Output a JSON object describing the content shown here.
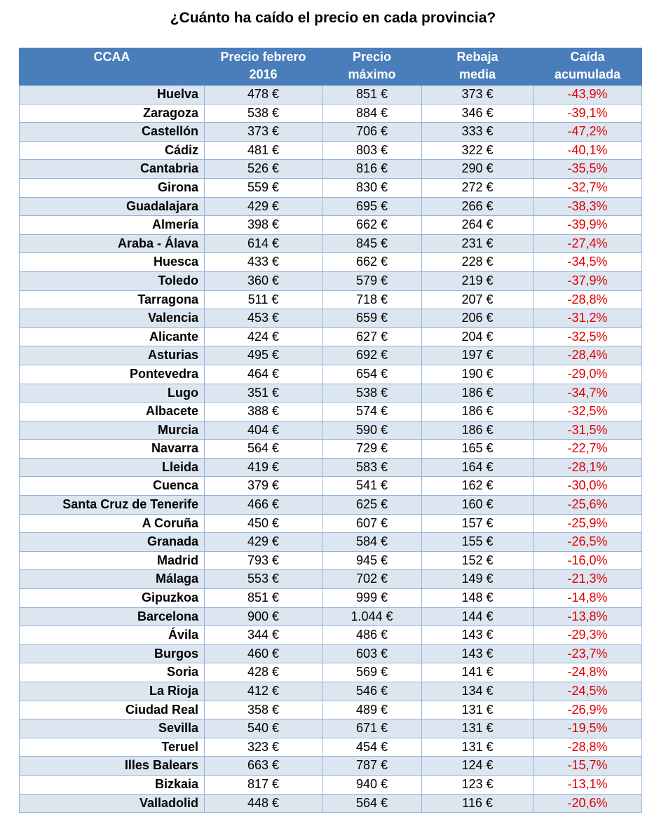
{
  "title": "¿Cuánto ha caído el precio en cada provincia?",
  "columns": [
    "CCAA",
    "Precio febrero 2016",
    "Precio máximo",
    "Rebaja media",
    "Caída acumulada"
  ],
  "rows": [
    [
      "Huelva",
      "478 €",
      "851 €",
      "373 €",
      "-43,9%"
    ],
    [
      "Zaragoza",
      "538 €",
      "884 €",
      "346 €",
      "-39,1%"
    ],
    [
      "Castellón",
      "373 €",
      "706 €",
      "333 €",
      "-47,2%"
    ],
    [
      "Cádiz",
      "481 €",
      "803 €",
      "322 €",
      "-40,1%"
    ],
    [
      "Cantabria",
      "526 €",
      "816 €",
      "290 €",
      "-35,5%"
    ],
    [
      "Girona",
      "559 €",
      "830 €",
      "272 €",
      "-32,7%"
    ],
    [
      "Guadalajara",
      "429 €",
      "695 €",
      "266 €",
      "-38,3%"
    ],
    [
      "Almería",
      "398 €",
      "662 €",
      "264 €",
      "-39,9%"
    ],
    [
      "Araba - Álava",
      "614 €",
      "845 €",
      "231 €",
      "-27,4%"
    ],
    [
      "Huesca",
      "433 €",
      "662 €",
      "228 €",
      "-34,5%"
    ],
    [
      "Toledo",
      "360 €",
      "579 €",
      "219 €",
      "-37,9%"
    ],
    [
      "Tarragona",
      "511 €",
      "718 €",
      "207 €",
      "-28,8%"
    ],
    [
      "Valencia",
      "453 €",
      "659 €",
      "206 €",
      "-31,2%"
    ],
    [
      "Alicante",
      "424 €",
      "627 €",
      "204 €",
      "-32,5%"
    ],
    [
      "Asturias",
      "495 €",
      "692 €",
      "197 €",
      "-28,4%"
    ],
    [
      "Pontevedra",
      "464 €",
      "654 €",
      "190 €",
      "-29,0%"
    ],
    [
      "Lugo",
      "351 €",
      "538 €",
      "186 €",
      "-34,7%"
    ],
    [
      "Albacete",
      "388 €",
      "574 €",
      "186 €",
      "-32,5%"
    ],
    [
      "Murcia",
      "404 €",
      "590 €",
      "186 €",
      "-31,5%"
    ],
    [
      "Navarra",
      "564 €",
      "729 €",
      "165 €",
      "-22,7%"
    ],
    [
      "Lleida",
      "419 €",
      "583 €",
      "164 €",
      "-28,1%"
    ],
    [
      "Cuenca",
      "379 €",
      "541 €",
      "162 €",
      "-30,0%"
    ],
    [
      "Santa Cruz de Tenerife",
      "466 €",
      "625 €",
      "160 €",
      "-25,6%"
    ],
    [
      "A Coruña",
      "450 €",
      "607 €",
      "157 €",
      "-25,9%"
    ],
    [
      "Granada",
      "429 €",
      "584 €",
      "155 €",
      "-26,5%"
    ],
    [
      "Madrid",
      "793 €",
      "945 €",
      "152 €",
      "-16,0%"
    ],
    [
      "Málaga",
      "553 €",
      "702 €",
      "149 €",
      "-21,3%"
    ],
    [
      "Gipuzkoa",
      "851 €",
      "999 €",
      "148 €",
      "-14,8%"
    ],
    [
      "Barcelona",
      "900 €",
      "1.044 €",
      "144 €",
      "-13,8%"
    ],
    [
      "Ávila",
      "344 €",
      "486 €",
      "143 €",
      "-29,3%"
    ],
    [
      "Burgos",
      "460 €",
      "603 €",
      "143 €",
      "-23,7%"
    ],
    [
      "Soria",
      "428 €",
      "569 €",
      "141 €",
      "-24,8%"
    ],
    [
      "La Rioja",
      "412 €",
      "546 €",
      "134 €",
      "-24,5%"
    ],
    [
      "Ciudad Real",
      "358 €",
      "489 €",
      "131 €",
      "-26,9%"
    ],
    [
      "Sevilla",
      "540 €",
      "671 €",
      "131 €",
      "-19,5%"
    ],
    [
      "Teruel",
      "323 €",
      "454 €",
      "131 €",
      "-28,8%"
    ],
    [
      "Illes Balears",
      "663 €",
      "787 €",
      "124 €",
      "-15,7%"
    ],
    [
      "Bizkaia",
      "817 €",
      "940 €",
      "123 €",
      "-13,1%"
    ],
    [
      "Valladolid",
      "448 €",
      "564 €",
      "116 €",
      "-20,6%"
    ]
  ],
  "colors": {
    "header_bg": "#4a7ebb",
    "row_alt": "#dce6f1",
    "border": "#95b3d7",
    "drop": "#e00000"
  }
}
